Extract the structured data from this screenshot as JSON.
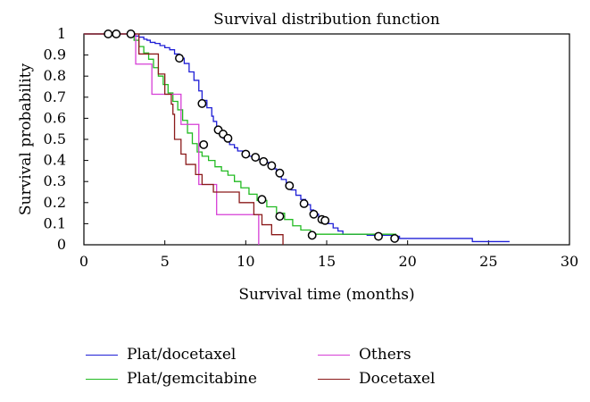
{
  "chart_data": {
    "type": "line",
    "title": "Survival distribution function",
    "xlabel": "Survival time (months)",
    "ylabel": "Survival probability",
    "xlim": [
      0,
      30
    ],
    "ylim": [
      0,
      1
    ],
    "xticks": [
      "0",
      "5",
      "10",
      "15",
      "20",
      "25",
      "30"
    ],
    "yticks": [
      "0",
      "0.1",
      "0.2",
      "0.3",
      "0.4",
      "0.5",
      "0.6",
      "0.7",
      "0.8",
      "0.9",
      "1"
    ],
    "grid": false,
    "legend_position": "bottom",
    "series": [
      {
        "name": "Plat/docetaxel",
        "color": "#1f1fd6",
        "steps": [
          [
            0,
            1
          ],
          [
            2.8,
            1
          ],
          [
            3.0,
            0.99
          ],
          [
            3.4,
            0.985
          ],
          [
            3.7,
            0.975
          ],
          [
            3.9,
            0.97
          ],
          [
            4.1,
            0.96
          ],
          [
            4.4,
            0.955
          ],
          [
            4.7,
            0.945
          ],
          [
            5.0,
            0.935
          ],
          [
            5.3,
            0.925
          ],
          [
            5.6,
            0.905
          ],
          [
            5.9,
            0.885
          ],
          [
            6.2,
            0.86
          ],
          [
            6.5,
            0.82
          ],
          [
            6.8,
            0.78
          ],
          [
            7.1,
            0.73
          ],
          [
            7.3,
            0.685
          ],
          [
            7.6,
            0.65
          ],
          [
            7.9,
            0.61
          ],
          [
            8.0,
            0.585
          ],
          [
            8.2,
            0.545
          ],
          [
            8.4,
            0.525
          ],
          [
            8.6,
            0.505
          ],
          [
            8.8,
            0.49
          ],
          [
            9.0,
            0.475
          ],
          [
            9.3,
            0.46
          ],
          [
            9.5,
            0.445
          ],
          [
            9.8,
            0.43
          ],
          [
            10.2,
            0.42
          ],
          [
            10.6,
            0.405
          ],
          [
            11.0,
            0.39
          ],
          [
            11.4,
            0.375
          ],
          [
            11.6,
            0.36
          ],
          [
            11.9,
            0.34
          ],
          [
            12.2,
            0.31
          ],
          [
            12.5,
            0.28
          ],
          [
            12.8,
            0.26
          ],
          [
            13.1,
            0.235
          ],
          [
            13.4,
            0.215
          ],
          [
            13.7,
            0.19
          ],
          [
            14.0,
            0.165
          ],
          [
            14.2,
            0.145
          ],
          [
            14.5,
            0.13
          ],
          [
            14.8,
            0.115
          ],
          [
            15.1,
            0.1
          ],
          [
            15.4,
            0.08
          ],
          [
            15.7,
            0.065
          ],
          [
            16.0,
            0.05
          ],
          [
            17.5,
            0.045
          ],
          [
            19.0,
            0.04
          ],
          [
            19.5,
            0.03
          ],
          [
            24.0,
            0.015
          ],
          [
            26.3,
            0.015
          ]
        ],
        "censored": [
          [
            1.5,
            1
          ],
          [
            2.0,
            1
          ],
          [
            2.9,
            1
          ],
          [
            5.9,
            0.885
          ],
          [
            7.3,
            0.67
          ],
          [
            8.3,
            0.545
          ],
          [
            8.6,
            0.525
          ],
          [
            8.9,
            0.505
          ],
          [
            10.0,
            0.43
          ],
          [
            10.6,
            0.415
          ],
          [
            11.1,
            0.395
          ],
          [
            11.6,
            0.375
          ],
          [
            12.1,
            0.34
          ],
          [
            12.7,
            0.28
          ],
          [
            13.6,
            0.195
          ],
          [
            14.2,
            0.145
          ],
          [
            14.7,
            0.12
          ],
          [
            14.9,
            0.115
          ],
          [
            18.2,
            0.04
          ],
          [
            19.2,
            0.03
          ]
        ]
      },
      {
        "name": "Plat/gemcitabine",
        "color": "#22bb22",
        "steps": [
          [
            0,
            1
          ],
          [
            2.9,
            1
          ],
          [
            3.1,
            0.97
          ],
          [
            3.4,
            0.94
          ],
          [
            3.7,
            0.91
          ],
          [
            4.0,
            0.88
          ],
          [
            4.3,
            0.84
          ],
          [
            4.6,
            0.8
          ],
          [
            4.9,
            0.76
          ],
          [
            5.2,
            0.72
          ],
          [
            5.5,
            0.68
          ],
          [
            5.8,
            0.64
          ],
          [
            6.1,
            0.59
          ],
          [
            6.4,
            0.53
          ],
          [
            6.7,
            0.48
          ],
          [
            7.0,
            0.44
          ],
          [
            7.3,
            0.42
          ],
          [
            7.7,
            0.4
          ],
          [
            8.1,
            0.37
          ],
          [
            8.5,
            0.35
          ],
          [
            8.9,
            0.33
          ],
          [
            9.3,
            0.3
          ],
          [
            9.7,
            0.27
          ],
          [
            10.2,
            0.24
          ],
          [
            10.7,
            0.21
          ],
          [
            11.3,
            0.18
          ],
          [
            11.9,
            0.15
          ],
          [
            12.4,
            0.12
          ],
          [
            12.9,
            0.09
          ],
          [
            13.4,
            0.07
          ],
          [
            14.0,
            0.05
          ],
          [
            18.5,
            0.05
          ],
          [
            19.3,
            0.05
          ]
        ],
        "censored": [
          [
            7.4,
            0.475
          ],
          [
            11.0,
            0.215
          ],
          [
            12.1,
            0.135
          ],
          [
            14.1,
            0.045
          ]
        ]
      },
      {
        "name": "Others",
        "color": "#d63fd6",
        "steps": [
          [
            0,
            1
          ],
          [
            3.0,
            1
          ],
          [
            3.2,
            0.857
          ],
          [
            4.2,
            0.714
          ],
          [
            6.0,
            0.571
          ],
          [
            7.1,
            0.286
          ],
          [
            8.2,
            0.143
          ],
          [
            10.8,
            0.143
          ],
          [
            10.8,
            0
          ]
        ],
        "censored": []
      },
      {
        "name": "Docetaxel",
        "color": "#8b1a1a",
        "steps": [
          [
            0,
            1
          ],
          [
            3.2,
            1
          ],
          [
            3.4,
            0.905
          ],
          [
            4.6,
            0.81
          ],
          [
            5.0,
            0.714
          ],
          [
            5.4,
            0.667
          ],
          [
            5.5,
            0.619
          ],
          [
            5.6,
            0.5
          ],
          [
            6.0,
            0.43
          ],
          [
            6.3,
            0.381
          ],
          [
            6.9,
            0.333
          ],
          [
            7.3,
            0.286
          ],
          [
            8.0,
            0.25
          ],
          [
            9.6,
            0.2
          ],
          [
            10.5,
            0.143
          ],
          [
            11.0,
            0.095
          ],
          [
            11.6,
            0.048
          ],
          [
            11.8,
            0.048
          ],
          [
            12.3,
            0
          ]
        ],
        "censored": []
      }
    ]
  }
}
